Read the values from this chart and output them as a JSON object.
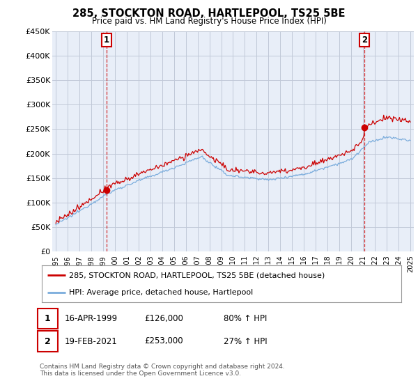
{
  "title_line1": "285, STOCKTON ROAD, HARTLEPOOL, TS25 5BE",
  "title_line2": "Price paid vs. HM Land Registry's House Price Index (HPI)",
  "ylim": [
    0,
    450000
  ],
  "yticks": [
    0,
    50000,
    100000,
    150000,
    200000,
    250000,
    300000,
    350000,
    400000,
    450000
  ],
  "ytick_labels": [
    "£0",
    "£50K",
    "£100K",
    "£150K",
    "£200K",
    "£250K",
    "£300K",
    "£350K",
    "£400K",
    "£450K"
  ],
  "point1_year": 1999.29,
  "point1_price": 126000,
  "point1_label": "16-APR-1999",
  "point1_hpi_pct": "80% ↑ HPI",
  "point2_year": 2021.13,
  "point2_price": 253000,
  "point2_label": "19-FEB-2021",
  "point2_hpi_pct": "27% ↑ HPI",
  "legend_entry1": "285, STOCKTON ROAD, HARTLEPOOL, TS25 5BE (detached house)",
  "legend_entry2": "HPI: Average price, detached house, Hartlepool",
  "footnote": "Contains HM Land Registry data © Crown copyright and database right 2024.\nThis data is licensed under the Open Government Licence v3.0.",
  "red_color": "#cc0000",
  "blue_color": "#7aacdc",
  "chart_bg": "#e8eef8",
  "bg_color": "#ffffff",
  "grid_color": "#c0c8d8"
}
